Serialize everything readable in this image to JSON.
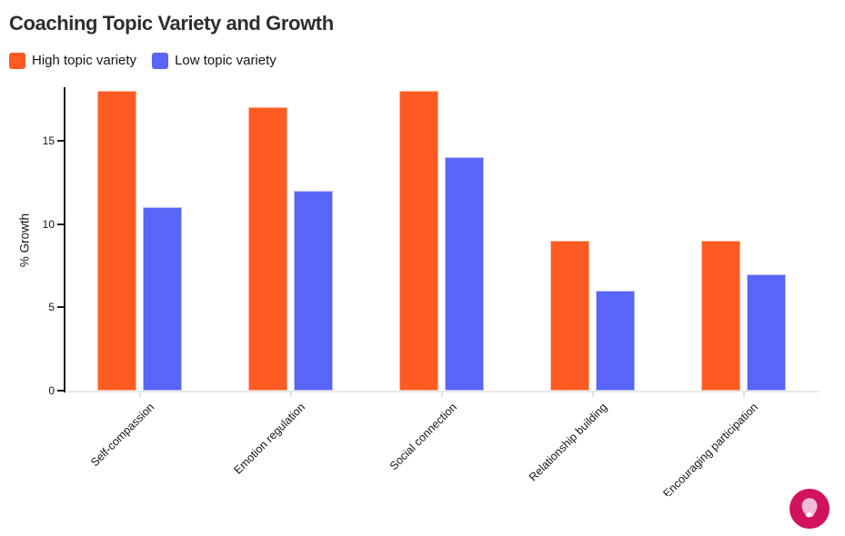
{
  "header": {
    "title": "Coaching Topic Variety and Growth"
  },
  "chart_data": {
    "type": "bar",
    "title": "Coaching Topic Variety and Growth",
    "categories": [
      "Self-compassion",
      "Emotion regulation",
      "Social connection",
      "Relationship building",
      "Encouraging participation"
    ],
    "series": [
      {
        "name": "High topic variety",
        "color": "#fe5b22",
        "border_color": "#ffb392",
        "values": [
          18,
          17,
          18,
          9,
          9
        ]
      },
      {
        "name": "Low topic variety",
        "color": "#5865f6",
        "border_color": "#b9bffb",
        "values": [
          11,
          12,
          14,
          6,
          7
        ]
      }
    ],
    "xlabel": "",
    "ylabel": "% Growth",
    "ylim": [
      0,
      18.2
    ],
    "yticks": [
      0,
      5,
      10,
      15
    ],
    "grid": false,
    "legend_position": "top-left",
    "axis_color": "#1b1b1b",
    "baseline_color": "#e9e9e9"
  },
  "fab": {
    "icon": "lightbulb-icon",
    "background": "#d1125e",
    "glyph_color": "#f3bcd7"
  }
}
